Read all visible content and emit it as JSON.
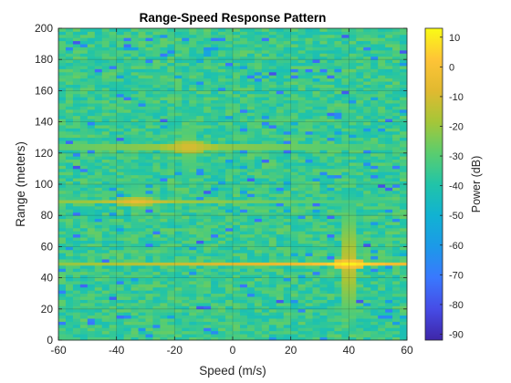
{
  "chart_data": {
    "type": "heatmap",
    "title": "Range-Speed Response Pattern",
    "xlabel": "Speed (m/s)",
    "ylabel": "Range (meters)",
    "xlim": [
      -60,
      60
    ],
    "ylim": [
      0,
      200
    ],
    "xticks": [
      -60,
      -40,
      -20,
      0,
      20,
      40,
      60
    ],
    "yticks": [
      0,
      20,
      40,
      60,
      80,
      100,
      120,
      140,
      160,
      180,
      200
    ],
    "grid": true,
    "colormap": "parula",
    "colorbar": {
      "label": "Power (dB)",
      "limits": [
        -92,
        13
      ],
      "ticks": [
        10,
        0,
        -10,
        -20,
        -30,
        -40,
        -50,
        -60,
        -70,
        -80,
        -90
      ]
    },
    "background_noise_db": -35,
    "targets": [
      {
        "speed": -15,
        "range": 124,
        "peak_db": -5
      },
      {
        "speed": -33,
        "range": 89,
        "peak_db": -8
      },
      {
        "speed": 40,
        "range": 49,
        "peak_db": 8
      }
    ]
  },
  "colors": {
    "parula_low": "#3e26a8",
    "parula_mid": "#21b4b4",
    "parula_high": "#f9fb15",
    "axis": "#262626"
  }
}
